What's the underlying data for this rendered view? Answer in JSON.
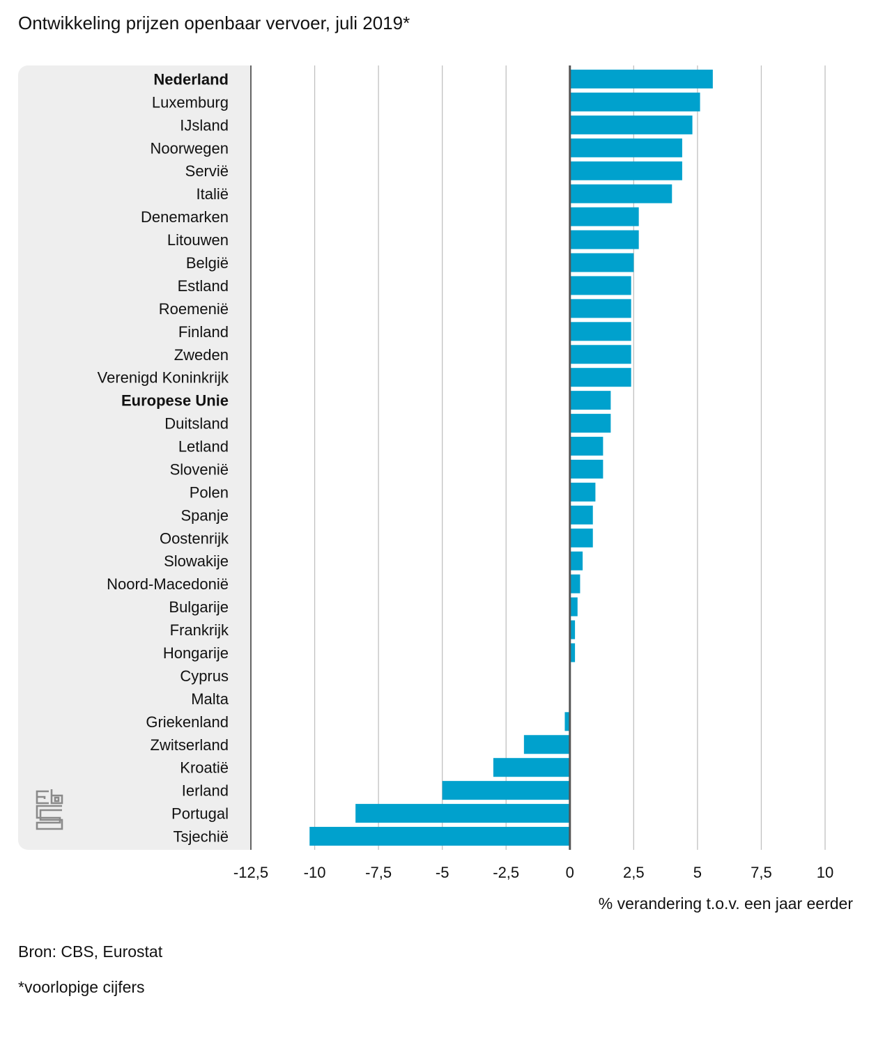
{
  "title": "Ontwikkeling prijzen openbaar vervoer, juli 2019*",
  "source": "Bron: CBS, Eurostat",
  "footnote": "*voorlopige cijfers",
  "colors": {
    "bar": "#00a1cd",
    "panel": "#eeeeee",
    "grid": "#c0c0c0",
    "zero_axis": "#555555"
  },
  "logo": "cbs-logo-icon",
  "chart_data": {
    "type": "bar",
    "orientation": "horizontal",
    "title": "Ontwikkeling prijzen openbaar vervoer, juli 2019*",
    "xlabel": "% verandering t.o.v. een jaar eerder",
    "ylabel": "",
    "xlim": [
      -12.5,
      10
    ],
    "xticks": [
      -12.5,
      -10,
      -7.5,
      -5,
      -2.5,
      0,
      2.5,
      5,
      7.5,
      10
    ],
    "xtick_labels": [
      "-12,5",
      "-10",
      "-7,5",
      "-5",
      "-2,5",
      "0",
      "2,5",
      "5",
      "7,5",
      "10"
    ],
    "grid": true,
    "categories": [
      "Nederland",
      "Luxemburg",
      "IJsland",
      "Noorwegen",
      "Servië",
      "Italië",
      "Denemarken",
      "Litouwen",
      "België",
      "Estland",
      "Roemenië",
      "Finland",
      "Zweden",
      "Verenigd Koninkrijk",
      "Europese Unie",
      "Duitsland",
      "Letland",
      "Slovenië",
      "Polen",
      "Spanje",
      "Oostenrijk",
      "Slowakije",
      "Noord-Macedonië",
      "Bulgarije",
      "Frankrijk",
      "Hongarije",
      "Cyprus",
      "Malta",
      "Griekenland",
      "Zwitserland",
      "Kroatië",
      "Ierland",
      "Portugal",
      "Tsjechië"
    ],
    "bold_categories": [
      "Nederland",
      "Europese Unie"
    ],
    "values": [
      5.6,
      5.1,
      4.8,
      4.4,
      4.4,
      4.0,
      2.7,
      2.7,
      2.5,
      2.4,
      2.4,
      2.4,
      2.4,
      2.4,
      1.6,
      1.6,
      1.3,
      1.3,
      1.0,
      0.9,
      0.9,
      0.5,
      0.4,
      0.3,
      0.2,
      0.2,
      0.0,
      0.0,
      -0.2,
      -1.8,
      -3.0,
      -5.0,
      -8.4,
      -10.2
    ]
  }
}
